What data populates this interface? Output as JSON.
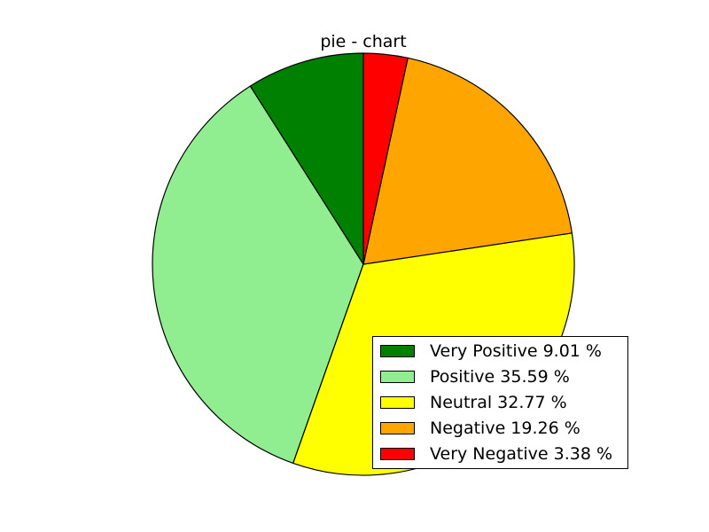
{
  "chart_data": {
    "type": "pie",
    "title": "pie - chart",
    "categories": [
      "Very Positive",
      "Positive",
      "Neutral",
      "Negative",
      "Very Negative"
    ],
    "values": [
      9.01,
      35.59,
      32.77,
      19.26,
      3.38
    ],
    "colors": [
      "#008000",
      "#90ee90",
      "#ffff00",
      "#ffa500",
      "#ff0000"
    ],
    "legend_labels": [
      "Very Positive 9.01 %",
      "Positive 35.59 %",
      "Neutral 32.77 %",
      "Negative 19.26 %",
      "Very Negative 3.38 %"
    ],
    "start_angle_deg": 90,
    "direction": "counterclockwise",
    "legend_position": "lower-right"
  }
}
